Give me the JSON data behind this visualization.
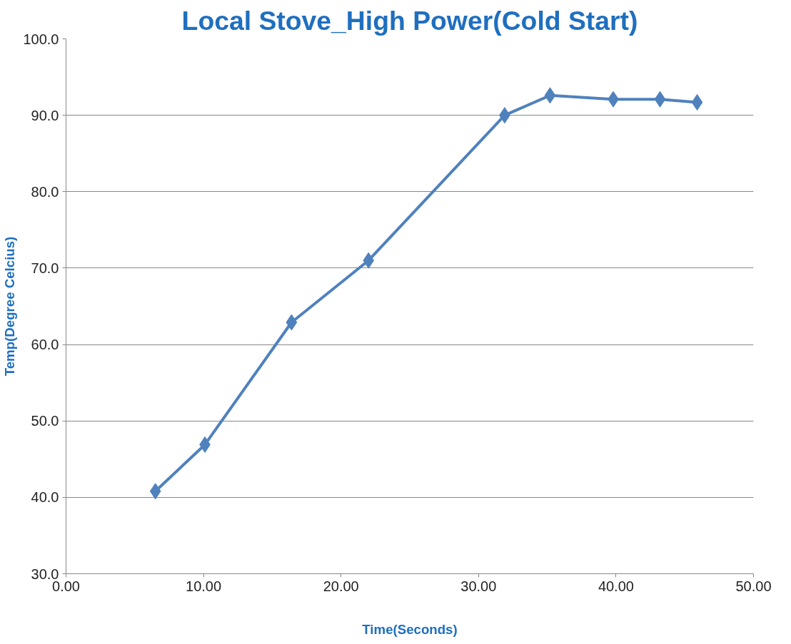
{
  "chart_data": {
    "type": "line",
    "title": "Local Stove_High Power(Cold Start)",
    "xlabel": "Time(Seconds)",
    "ylabel": "Temp(Degree Celcius)",
    "x": [
      6.5,
      10.1,
      16.4,
      22.0,
      31.9,
      35.2,
      39.8,
      43.2,
      45.9
    ],
    "series": [
      {
        "color": "#4f81bd",
        "values": [
          40.8,
          46.9,
          62.9,
          71.0,
          90.0,
          92.6,
          92.1,
          92.1,
          91.7
        ]
      }
    ],
    "xlim": [
      0,
      50
    ],
    "xticks": [
      {
        "value": 0,
        "label": "0.00"
      },
      {
        "value": 10,
        "label": "10.00"
      },
      {
        "value": 20,
        "label": "20.00"
      },
      {
        "value": 30,
        "label": "30.00"
      },
      {
        "value": 40,
        "label": "40.00"
      },
      {
        "value": 50,
        "label": "50.00"
      }
    ],
    "ylim": [
      30,
      100
    ],
    "yticks": [
      {
        "value": 30,
        "label": "30.0"
      },
      {
        "value": 40,
        "label": "40.0"
      },
      {
        "value": 50,
        "label": "50.0"
      },
      {
        "value": 60,
        "label": "60.0"
      },
      {
        "value": 70,
        "label": "70.0"
      },
      {
        "value": 80,
        "label": "80.0"
      },
      {
        "value": 90,
        "label": "90.0"
      },
      {
        "value": 100,
        "label": "100.0"
      }
    ],
    "grid": "y",
    "marker": "diamond",
    "line_style": "solid"
  }
}
